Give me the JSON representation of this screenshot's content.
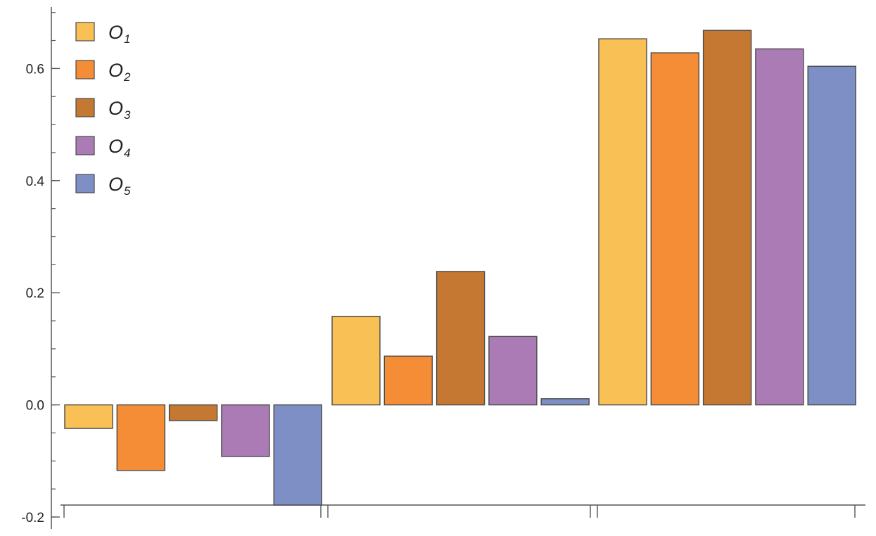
{
  "chart_data": {
    "type": "bar",
    "title": "",
    "xlabel": "",
    "ylabel": "",
    "ylim": [
      -0.2,
      0.72
    ],
    "grid": false,
    "legend_position": "top-left",
    "categories": [
      "",
      "",
      ""
    ],
    "yticks": [
      {
        "value": -0.2,
        "label": "-0.2"
      },
      {
        "value": 0.0,
        "label": "0.0"
      },
      {
        "value": 0.2,
        "label": "0.2"
      },
      {
        "value": 0.4,
        "label": "0.4"
      },
      {
        "value": 0.6,
        "label": "0.6"
      }
    ],
    "series": [
      {
        "name": "O1",
        "base": "O",
        "sub": "1",
        "color": "#F9C155",
        "values": [
          -0.042,
          0.158,
          0.653
        ]
      },
      {
        "name": "O2",
        "base": "O",
        "sub": "2",
        "color": "#F58C36",
        "values": [
          -0.117,
          0.087,
          0.628
        ]
      },
      {
        "name": "O3",
        "base": "O",
        "sub": "3",
        "color": "#C57832",
        "values": [
          -0.028,
          0.238,
          0.668
        ]
      },
      {
        "name": "O4",
        "base": "O",
        "sub": "4",
        "color": "#AB7BB5",
        "values": [
          -0.092,
          0.122,
          0.635
        ]
      },
      {
        "name": "O5",
        "base": "O",
        "sub": "5",
        "color": "#7E8FC6",
        "values": [
          -0.205,
          0.011,
          0.604
        ]
      }
    ]
  }
}
